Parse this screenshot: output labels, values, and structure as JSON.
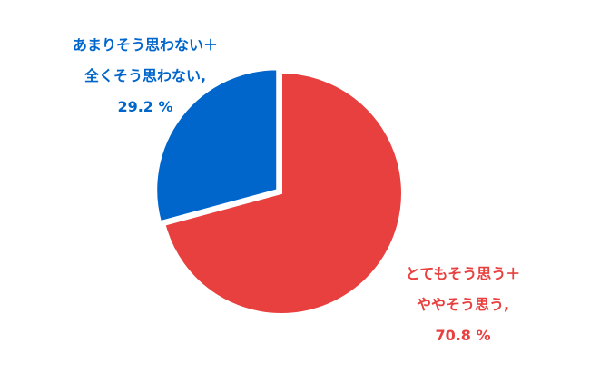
{
  "chart_data": {
    "type": "pie",
    "start_angle": "12 o'clock",
    "direction": "clockwise",
    "slices": [
      {
        "label_lines": [
          "とてもそう思う＋",
          "ややそう思う,",
          "70.8 %"
        ],
        "value": 70.8,
        "color": "#E8403F",
        "exploded": false
      },
      {
        "label_lines": [
          "あまりそう思わない＋",
          "全くそう思わない,",
          "29.2 %"
        ],
        "value": 29.2,
        "color": "#0066CC",
        "exploded": true
      }
    ]
  }
}
